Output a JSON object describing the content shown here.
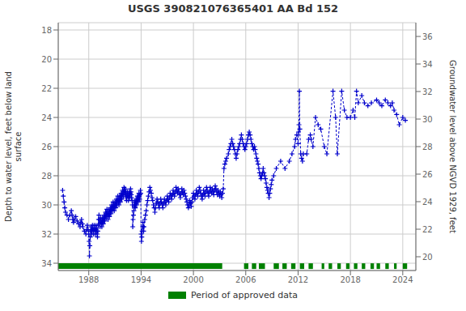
{
  "chart_data": {
    "type": "line",
    "title": "USGS 390821076365401 AA Bd 152",
    "ylabel": "Depth to water level, feet below land\nsurface",
    "y2label": "Groundwater level above NGVD 1929, feet",
    "xlim": [
      1984.5,
      2025.5
    ],
    "xticks": [
      1988,
      1994,
      2000,
      2006,
      2012,
      2018,
      2024
    ],
    "ylim": [
      34.5,
      17.5
    ],
    "yticks": [
      18,
      20,
      22,
      24,
      26,
      28,
      30,
      32,
      34
    ],
    "y2lim": [
      19.0,
      37.0
    ],
    "y2ticks": [
      20,
      22,
      24,
      26,
      28,
      30,
      32,
      34,
      36
    ],
    "grid": true,
    "legend": "bottom",
    "series": [
      {
        "type": "line",
        "color": "#0000cc",
        "marker": "plus",
        "line_style": "dashed",
        "x": [
          1985.0,
          1985.08,
          1985.17,
          1985.25,
          1985.33,
          1985.5,
          1985.67,
          1985.83,
          1986.0,
          1986.08,
          1986.17,
          1986.25,
          1986.33,
          1986.5,
          1986.67,
          1986.83,
          1987.0,
          1987.08,
          1987.17,
          1987.25,
          1987.33,
          1987.5,
          1987.67,
          1987.75,
          1987.83,
          1987.92,
          1988.0,
          1988.04,
          1988.08,
          1988.12,
          1988.17,
          1988.21,
          1988.25,
          1988.29,
          1988.33,
          1988.37,
          1988.42,
          1988.46,
          1988.5,
          1988.54,
          1988.58,
          1988.62,
          1988.67,
          1988.71,
          1988.75,
          1988.79,
          1988.83,
          1988.87,
          1988.92,
          1988.96,
          1989.0,
          1989.04,
          1989.08,
          1989.12,
          1989.17,
          1989.21,
          1989.25,
          1989.29,
          1989.33,
          1989.37,
          1989.42,
          1989.46,
          1989.5,
          1989.54,
          1989.58,
          1989.62,
          1989.67,
          1989.71,
          1989.75,
          1989.79,
          1989.83,
          1989.87,
          1989.92,
          1989.96,
          1990.0,
          1990.04,
          1990.08,
          1990.12,
          1990.17,
          1990.21,
          1990.25,
          1990.29,
          1990.33,
          1990.37,
          1990.42,
          1990.46,
          1990.5,
          1990.54,
          1990.58,
          1990.62,
          1990.67,
          1990.71,
          1990.75,
          1990.79,
          1990.83,
          1990.87,
          1990.92,
          1990.96,
          1991.0,
          1991.04,
          1991.08,
          1991.12,
          1991.17,
          1991.21,
          1991.25,
          1991.29,
          1991.33,
          1991.37,
          1991.42,
          1991.46,
          1991.5,
          1991.54,
          1991.58,
          1991.62,
          1991.67,
          1991.71,
          1991.75,
          1991.79,
          1991.83,
          1991.87,
          1991.92,
          1991.96,
          1992.0,
          1992.04,
          1992.08,
          1992.12,
          1992.17,
          1992.21,
          1992.25,
          1992.29,
          1992.33,
          1992.37,
          1992.42,
          1992.46,
          1992.5,
          1992.54,
          1992.58,
          1992.62,
          1992.67,
          1992.71,
          1992.75,
          1992.79,
          1992.83,
          1992.87,
          1992.92,
          1992.96,
          1993.0,
          1993.04,
          1993.08,
          1993.12,
          1993.17,
          1993.21,
          1993.25,
          1993.29,
          1993.33,
          1993.37,
          1993.42,
          1993.46,
          1993.5,
          1993.54,
          1993.58,
          1993.62,
          1993.67,
          1993.71,
          1993.75,
          1993.79,
          1993.83,
          1993.87,
          1993.92,
          1993.96,
          1994.0,
          1994.04,
          1994.08,
          1994.12,
          1994.17,
          1994.21,
          1994.25,
          1994.29,
          1994.33,
          1994.42,
          1994.5,
          1994.58,
          1994.67,
          1994.75,
          1994.83,
          1994.92,
          1995.0,
          1995.08,
          1995.17,
          1995.25,
          1995.33,
          1995.42,
          1995.5,
          1995.58,
          1995.67,
          1995.75,
          1995.83,
          1995.92,
          1996.0,
          1996.08,
          1996.17,
          1996.25,
          1996.33,
          1996.42,
          1996.5,
          1996.58,
          1996.67,
          1996.75,
          1996.83,
          1996.92,
          1997.0,
          1997.08,
          1997.17,
          1997.25,
          1997.33,
          1997.42,
          1997.5,
          1997.58,
          1997.67,
          1997.75,
          1997.83,
          1997.92,
          1998.0,
          1998.08,
          1998.17,
          1998.25,
          1998.33,
          1998.42,
          1998.5,
          1998.58,
          1998.67,
          1998.75,
          1998.83,
          1998.92,
          1999.0,
          1999.08,
          1999.17,
          1999.25,
          1999.33,
          1999.42,
          1999.5,
          1999.58,
          1999.67,
          1999.75,
          1999.83,
          1999.92,
          2000.0,
          2000.08,
          2000.17,
          2000.25,
          2000.33,
          2000.42,
          2000.5,
          2000.58,
          2000.67,
          2000.75,
          2000.83,
          2000.92,
          2001.0,
          2001.08,
          2001.17,
          2001.25,
          2001.33,
          2001.42,
          2001.5,
          2001.58,
          2001.67,
          2001.75,
          2001.83,
          2001.92,
          2002.0,
          2002.08,
          2002.17,
          2002.25,
          2002.33,
          2002.42,
          2002.5,
          2002.58,
          2002.67,
          2002.75,
          2002.83,
          2002.92,
          2003.0,
          2003.08,
          2003.17,
          2003.25,
          2003.33,
          2003.42,
          2003.5,
          2003.6,
          2003.7,
          2003.8,
          2004.0,
          2004.1,
          2004.2,
          2004.3,
          2004.4,
          2004.5,
          2004.6,
          2004.7,
          2004.8,
          2004.9,
          2005.0,
          2005.1,
          2005.2,
          2005.3,
          2005.4,
          2005.5,
          2005.6,
          2005.7,
          2005.8,
          2005.9,
          2006.0,
          2006.1,
          2006.2,
          2006.3,
          2006.4,
          2006.5,
          2006.6,
          2006.7,
          2006.8,
          2006.9,
          2007.0,
          2007.08,
          2007.17,
          2007.25,
          2007.33,
          2007.42,
          2007.5,
          2007.58,
          2007.67,
          2007.75,
          2007.83,
          2007.92,
          2008.0,
          2008.08,
          2008.17,
          2008.25,
          2008.33,
          2008.42,
          2008.5,
          2008.58,
          2008.67,
          2008.75,
          2008.83,
          2008.92,
          2009.0,
          2009.2,
          2009.5,
          2010.0,
          2010.5,
          2011.0,
          2011.3,
          2011.6,
          2011.7,
          2011.85,
          2012.0,
          2012.05,
          2012.1,
          2012.15,
          2012.2,
          2012.3,
          2012.4,
          2012.5,
          2012.6,
          2013.0,
          2013.2,
          2013.4,
          2013.5,
          2013.7,
          2014.0,
          2014.3,
          2014.6,
          2015.0,
          2015.3,
          2016.0,
          2016.3,
          2016.5,
          2017.0,
          2017.3,
          2017.6,
          2018.0,
          2018.3,
          2018.5,
          2018.7,
          2018.9,
          2019.3,
          2019.6,
          2020.0,
          2020.4,
          2021.0,
          2021.3,
          2021.6,
          2022.0,
          2022.3,
          2022.6,
          2022.8,
          2023.0,
          2023.3,
          2023.6,
          2024.0,
          2024.3
        ],
        "values": [
          29.0,
          29.4,
          29.8,
          30.2,
          30.5,
          30.7,
          31.0,
          30.7,
          30.4,
          30.7,
          31.0,
          31.2,
          31.0,
          30.8,
          31.1,
          31.3,
          31.5,
          31.2,
          31.0,
          31.3,
          31.5,
          31.8,
          32.0,
          31.7,
          31.4,
          31.7,
          32.0,
          32.5,
          33.5,
          32.8,
          32.2,
          31.8,
          31.5,
          31.8,
          32.0,
          31.7,
          31.4,
          31.6,
          31.8,
          32.0,
          31.7,
          31.4,
          31.6,
          31.8,
          32.0,
          31.7,
          31.4,
          31.6,
          31.8,
          32.0,
          32.2,
          31.8,
          31.4,
          31.0,
          30.7,
          31.0,
          31.3,
          31.5,
          31.2,
          30.9,
          31.1,
          31.3,
          31.5,
          31.2,
          30.9,
          31.1,
          31.3,
          31.0,
          30.7,
          30.9,
          31.1,
          30.8,
          30.5,
          30.7,
          30.9,
          30.6,
          30.3,
          30.5,
          30.7,
          31.0,
          30.7,
          30.4,
          30.6,
          30.8,
          30.5,
          30.2,
          30.4,
          30.6,
          30.3,
          30.0,
          30.2,
          30.4,
          30.1,
          29.8,
          30.0,
          30.2,
          30.4,
          30.1,
          29.8,
          30.0,
          30.2,
          29.9,
          29.6,
          29.8,
          30.0,
          29.7,
          29.4,
          29.6,
          29.8,
          30.0,
          29.7,
          29.4,
          29.6,
          29.8,
          29.5,
          29.2,
          29.4,
          29.6,
          29.3,
          29.0,
          29.2,
          29.4,
          29.1,
          28.8,
          29.0,
          29.2,
          28.9,
          29.1,
          29.3,
          29.5,
          29.7,
          29.4,
          29.1,
          29.3,
          29.5,
          29.7,
          29.4,
          29.1,
          29.3,
          29.5,
          29.2,
          28.9,
          29.1,
          29.3,
          29.5,
          29.7,
          30.0,
          31.5,
          31.0,
          30.7,
          30.4,
          30.1,
          29.8,
          30.0,
          30.2,
          29.9,
          29.6,
          29.8,
          30.0,
          29.7,
          29.4,
          29.6,
          29.8,
          29.5,
          29.2,
          29.4,
          29.6,
          29.3,
          29.0,
          29.2,
          32.0,
          32.5,
          32.2,
          31.8,
          31.5,
          31.2,
          31.5,
          31.8,
          31.5,
          31.0,
          30.7,
          30.4,
          30.0,
          29.7,
          29.4,
          29.1,
          28.8,
          29.0,
          29.2,
          29.5,
          29.7,
          30.0,
          30.2,
          30.5,
          30.2,
          29.9,
          29.6,
          29.8,
          30.0,
          30.2,
          29.9,
          29.6,
          29.8,
          30.0,
          30.2,
          29.9,
          29.6,
          29.8,
          30.0,
          29.7,
          29.4,
          29.6,
          29.8,
          29.5,
          29.2,
          29.4,
          29.6,
          29.3,
          29.0,
          29.2,
          29.4,
          29.1,
          28.8,
          29.0,
          29.2,
          28.9,
          29.1,
          29.3,
          29.5,
          29.2,
          28.9,
          29.1,
          29.3,
          29.0,
          29.2,
          29.4,
          29.6,
          29.8,
          30.0,
          30.2,
          30.0,
          29.7,
          29.9,
          30.1,
          29.8,
          29.5,
          29.2,
          29.4,
          29.6,
          29.3,
          29.0,
          29.2,
          29.4,
          29.1,
          28.8,
          29.0,
          29.2,
          29.4,
          29.6,
          29.3,
          29.0,
          29.2,
          29.4,
          29.1,
          28.8,
          29.0,
          29.2,
          29.4,
          29.1,
          28.8,
          29.0,
          29.2,
          28.9,
          29.1,
          29.3,
          29.0,
          28.7,
          28.9,
          29.1,
          29.3,
          29.0,
          29.2,
          29.4,
          29.1,
          29.3,
          29.5,
          29.2,
          28.9,
          27.5,
          27.2,
          27.0,
          26.8,
          26.5,
          26.2,
          26.0,
          25.8,
          25.5,
          25.8,
          26.0,
          26.2,
          26.5,
          26.8,
          26.5,
          26.2,
          26.0,
          25.8,
          25.5,
          25.2,
          25.5,
          25.8,
          26.0,
          26.2,
          26.0,
          25.8,
          25.5,
          25.2,
          25.0,
          25.2,
          25.5,
          25.8,
          26.0,
          26.2,
          26.0,
          26.2,
          26.5,
          26.8,
          27.0,
          27.2,
          27.5,
          27.8,
          28.0,
          28.2,
          28.0,
          27.8,
          27.5,
          27.8,
          28.0,
          28.2,
          28.5,
          28.8,
          29.0,
          29.2,
          29.5,
          29.2,
          28.9,
          28.6,
          28.3,
          28.0,
          27.5,
          27.0,
          27.5,
          27.0,
          26.5,
          26.0,
          25.5,
          25.2,
          25.8,
          25.0,
          24.5,
          22.2,
          24.8,
          26.5,
          26.8,
          27.0,
          26.5,
          26.5,
          25.5,
          25.2,
          25.5,
          26.0,
          24.0,
          24.5,
          24.8,
          26.0,
          26.5,
          22.2,
          24.0,
          26.5,
          22.2,
          23.5,
          24.0,
          24.0,
          23.5,
          24.0,
          22.2,
          23.0,
          22.5,
          23.0,
          23.2,
          23.0,
          22.8,
          23.0,
          23.2,
          22.8,
          23.0,
          23.2,
          23.0,
          23.5,
          23.8,
          24.5,
          24.0,
          24.2
        ]
      },
      {
        "name": "Period of approved data",
        "type": "bar",
        "orientation": "horizontal",
        "color": "#008000",
        "y": 34.2,
        "segments": [
          [
            1984.5,
            2003.3
          ],
          [
            2005.8,
            2006.3
          ],
          [
            2006.7,
            2007.2
          ],
          [
            2007.5,
            2008.2
          ],
          [
            2009.2,
            2009.8
          ],
          [
            2010.2,
            2010.7
          ],
          [
            2011.2,
            2011.7
          ],
          [
            2012.2,
            2012.7
          ],
          [
            2013.2,
            2013.7
          ],
          [
            2014.7,
            2015.0
          ],
          [
            2015.5,
            2015.9
          ],
          [
            2016.5,
            2016.9
          ],
          [
            2017.5,
            2017.9
          ],
          [
            2018.4,
            2018.8
          ],
          [
            2019.3,
            2019.7
          ],
          [
            2020.3,
            2020.7
          ],
          [
            2021.0,
            2021.4
          ],
          [
            2022.0,
            2022.4
          ],
          [
            2023.0,
            2023.3
          ],
          [
            2024.0,
            2024.5
          ]
        ]
      }
    ]
  }
}
